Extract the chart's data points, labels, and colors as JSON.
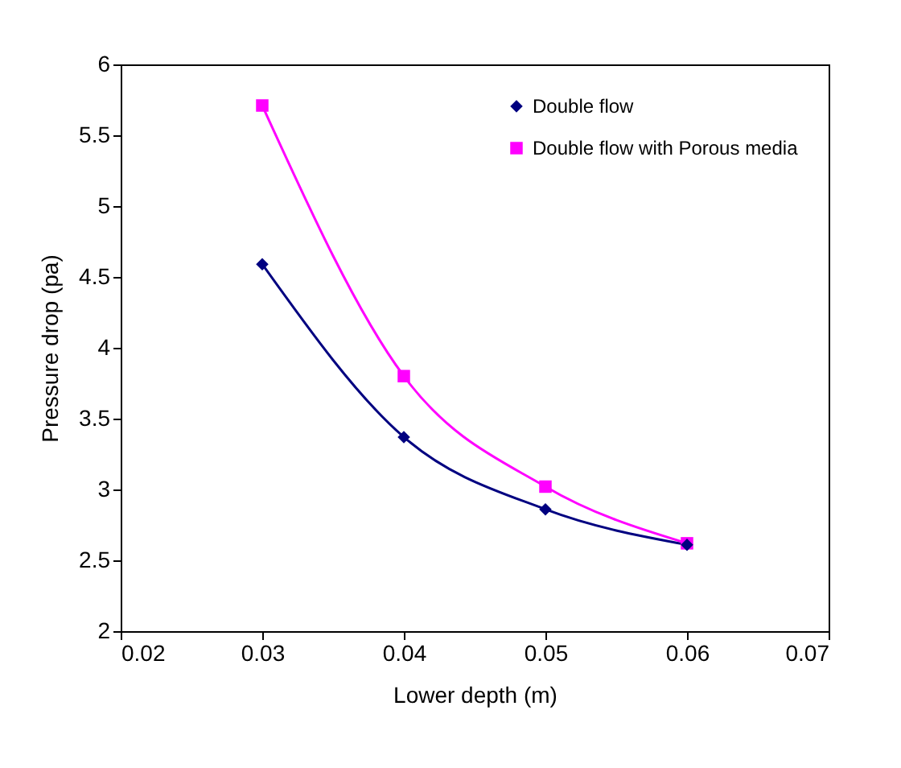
{
  "chart_data": {
    "type": "line",
    "xlabel": "Lower depth (m)",
    "ylabel": "Pressure drop (pa)",
    "x": [
      0.03,
      0.04,
      0.05,
      0.06
    ],
    "series": [
      {
        "name": "Double flow",
        "color": "#000080",
        "marker": "diamond",
        "values": [
          4.59,
          3.37,
          2.86,
          2.61
        ]
      },
      {
        "name": "Double flow with Porous media",
        "color": "#ff00ff",
        "marker": "square",
        "values": [
          5.71,
          3.8,
          3.02,
          2.62
        ]
      }
    ],
    "xlim": [
      0.02,
      0.07
    ],
    "xticks": [
      0.02,
      0.03,
      0.04,
      0.05,
      0.06,
      0.07
    ],
    "ylim": [
      2,
      6
    ],
    "yticks": [
      2,
      2.5,
      3,
      3.5,
      4,
      4.5,
      5,
      5.5,
      6
    ],
    "grid": false,
    "legend": "top right",
    "line_style": "solid"
  }
}
